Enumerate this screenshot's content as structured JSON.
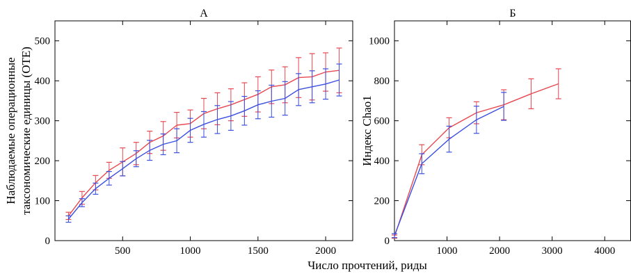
{
  "figure": {
    "xlabel": "Число прочтений, риды"
  },
  "colors": {
    "series_red": "#e8474f",
    "series_blue": "#3b4fe0",
    "axis": "#000000"
  },
  "chart_data": [
    {
      "type": "line",
      "title": "А",
      "ylabel_lines": [
        "Наблюдаемые операционные",
        "таксономические единицы (ОТЕ)"
      ],
      "xlim": [
        0,
        2200
      ],
      "ylim": [
        0,
        550
      ],
      "xticks": [
        500,
        1000,
        1500,
        2000
      ],
      "yticks": [
        0,
        100,
        200,
        300,
        400,
        500
      ],
      "grid": false,
      "series": [
        {
          "color": "#e8474f",
          "x": [
            100,
            200,
            300,
            400,
            500,
            600,
            700,
            800,
            900,
            1000,
            1100,
            1200,
            1300,
            1400,
            1500,
            1600,
            1700,
            1800,
            1900,
            2000,
            2100
          ],
          "y": [
            62,
            107,
            145,
            176,
            197,
            218,
            246,
            262,
            289,
            293,
            318,
            330,
            340,
            353,
            366,
            385,
            390,
            408,
            410,
            422,
            426
          ],
          "err": [
            9,
            16,
            18,
            20,
            35,
            28,
            28,
            36,
            32,
            34,
            38,
            40,
            40,
            42,
            44,
            42,
            45,
            50,
            58,
            48,
            56
          ]
        },
        {
          "color": "#3b4fe0",
          "x": [
            100,
            200,
            300,
            400,
            500,
            600,
            700,
            800,
            900,
            1000,
            1100,
            1200,
            1300,
            1400,
            1500,
            1600,
            1700,
            1800,
            1900,
            2000,
            2100
          ],
          "y": [
            54,
            95,
            130,
            156,
            180,
            205,
            226,
            241,
            250,
            276,
            291,
            303,
            312,
            325,
            340,
            349,
            356,
            378,
            385,
            392,
            402
          ],
          "err": [
            8,
            10,
            14,
            17,
            18,
            20,
            25,
            26,
            30,
            30,
            32,
            35,
            36,
            36,
            35,
            40,
            42,
            40,
            40,
            38,
            40
          ]
        }
      ]
    },
    {
      "type": "line",
      "title": "Б",
      "ylabel": "Индекс Chao1",
      "xlim": [
        0,
        4500
      ],
      "ylim": [
        0,
        1100
      ],
      "xticks": [
        1000,
        2000,
        3000,
        4000
      ],
      "yticks": [
        0,
        200,
        400,
        600,
        800,
        1000
      ],
      "grid": false,
      "series": [
        {
          "color": "#e8474f",
          "x": [
            0,
            520,
            1040,
            1560,
            2080,
            2600,
            3120
          ],
          "y": [
            20,
            430,
            565,
            640,
            680,
            735,
            785
          ],
          "err": [
            8,
            50,
            50,
            55,
            75,
            75,
            75
          ]
        },
        {
          "color": "#3b4fe0",
          "x": [
            0,
            520,
            1040,
            1560,
            2080
          ],
          "y": [
            25,
            385,
            508,
            605,
            672
          ],
          "err": [
            10,
            50,
            65,
            68,
            70
          ]
        }
      ]
    }
  ]
}
